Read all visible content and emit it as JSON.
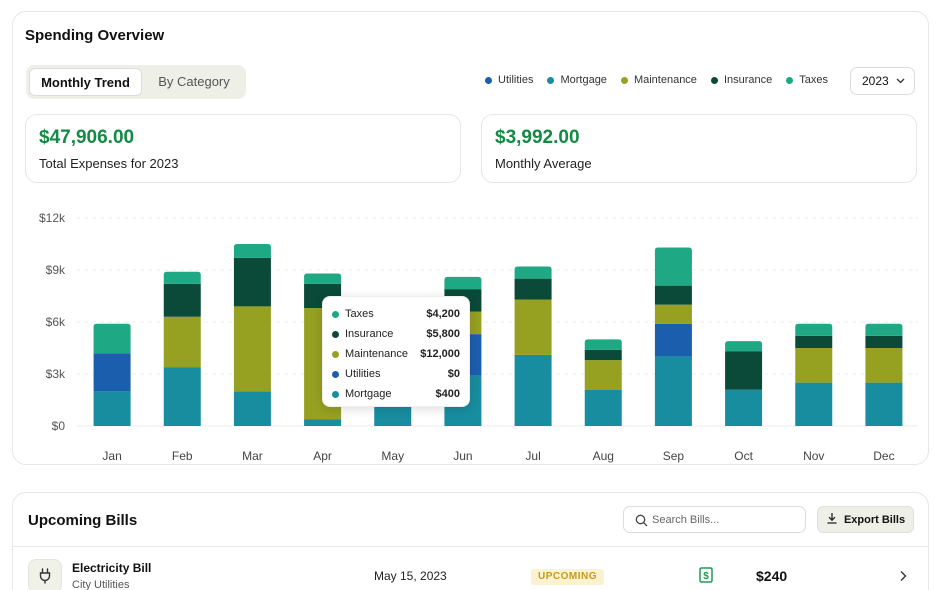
{
  "overview": {
    "title": "Spending Overview",
    "tabs": [
      {
        "label": "Monthly Trend",
        "active": true
      },
      {
        "label": "By Category",
        "active": false
      }
    ],
    "legend": [
      {
        "name": "Utilities",
        "color": "#1c5eae"
      },
      {
        "name": "Mortgage",
        "color": "#188d9f"
      },
      {
        "name": "Maintenance",
        "color": "#96a021"
      },
      {
        "name": "Insurance",
        "color": "#0b4a38"
      },
      {
        "name": "Taxes",
        "color": "#1ea884"
      }
    ],
    "year": "2023",
    "stats": [
      {
        "value": "$47,906.00",
        "label": "Total Expenses for 2023"
      },
      {
        "value": "$3,992.00",
        "label": "Monthly Average"
      }
    ]
  },
  "chart_data": {
    "type": "bar",
    "stacked": true,
    "categories": [
      "Jan",
      "Feb",
      "Mar",
      "Apr",
      "May",
      "Jun",
      "Jul",
      "Aug",
      "Sep",
      "Oct",
      "Nov",
      "Dec"
    ],
    "y_ticks": [
      "$0",
      "$3k",
      "$6k",
      "$9k",
      "$12k"
    ],
    "ylim": [
      0,
      12000
    ],
    "series": [
      {
        "name": "Mortgage",
        "color": "#188d9f",
        "values": [
          2000,
          3400,
          2000,
          400,
          3000,
          2900,
          4100,
          2100,
          4000,
          2100,
          2500,
          2500
        ]
      },
      {
        "name": "Utilities",
        "color": "#1c5eae",
        "values": [
          2200,
          0,
          0,
          0,
          0,
          2400,
          0,
          0,
          1900,
          0,
          0,
          0
        ]
      },
      {
        "name": "Maintenance",
        "color": "#96a021",
        "values": [
          0,
          2900,
          4900,
          6400,
          0,
          1300,
          3200,
          1700,
          1100,
          0,
          2000,
          2000
        ]
      },
      {
        "name": "Insurance",
        "color": "#0b4a38",
        "values": [
          0,
          1900,
          2800,
          1400,
          0,
          1300,
          1200,
          600,
          1100,
          2200,
          700,
          700
        ]
      },
      {
        "name": "Taxes",
        "color": "#1ea884",
        "values": [
          1700,
          700,
          800,
          600,
          0,
          700,
          700,
          600,
          2200,
          600,
          700,
          700
        ]
      }
    ]
  },
  "tooltip": {
    "rows": [
      {
        "label": "Taxes",
        "value": "$4,200",
        "color": "#1ea884"
      },
      {
        "label": "Insurance",
        "value": "$5,800",
        "color": "#0b4a38"
      },
      {
        "label": "Maintenance",
        "value": "$12,000",
        "color": "#96a021"
      },
      {
        "label": "Utilities",
        "value": "$0",
        "color": "#1c5eae"
      },
      {
        "label": "Mortgage",
        "value": "$400",
        "color": "#188d9f"
      }
    ]
  },
  "bills": {
    "title": "Upcoming Bills",
    "search_placeholder": "Search Bills...",
    "export_label": "Export Bills",
    "items": [
      {
        "name": "Electricity Bill",
        "provider": "City Utilities",
        "date": "May 15, 2023",
        "status": "UPCOMING",
        "amount": "$240"
      }
    ]
  }
}
